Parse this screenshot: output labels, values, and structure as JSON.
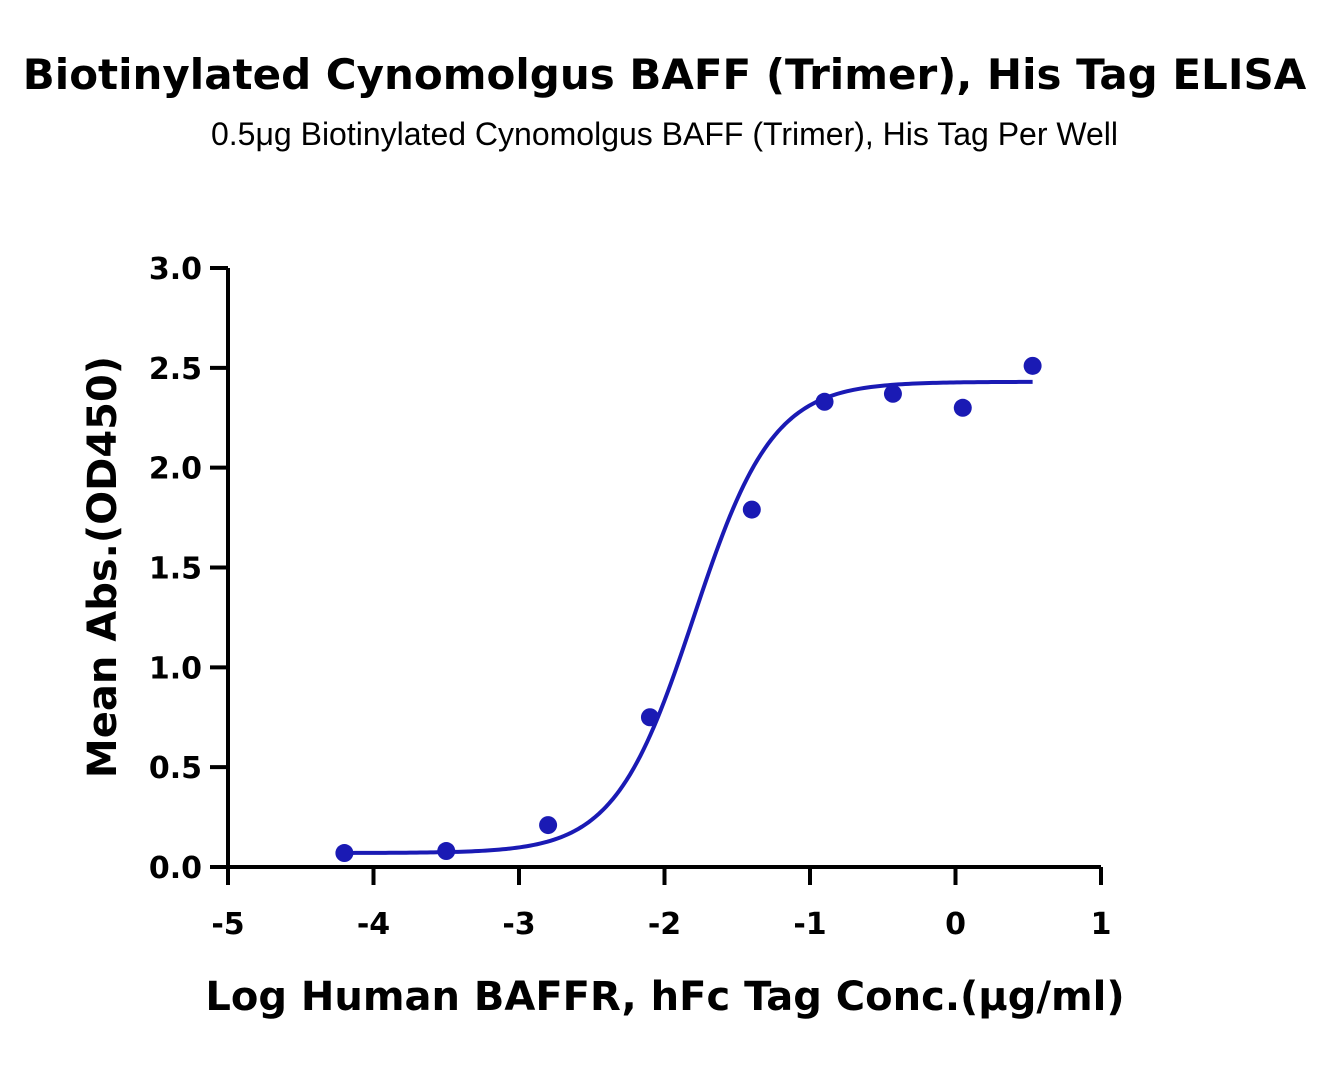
{
  "chart_data": {
    "type": "scatter",
    "title": "Biotinylated Cynomolgus BAFF (Trimer), His Tag  ELISA",
    "subtitle": "0.5μg Biotinylated Cynomolgus BAFF (Trimer), His Tag Per Well",
    "xlabel": "Log  Human BAFFR, hFc Tag Conc.(μg/ml)",
    "ylabel": "Mean Abs.(OD450)",
    "xlim": [
      -5,
      1
    ],
    "ylim": [
      0,
      3.0
    ],
    "x_ticks": [
      "-5",
      "-4",
      "-3",
      "-2",
      "-1",
      "0",
      "1"
    ],
    "y_ticks": [
      "0.0",
      "0.5",
      "1.0",
      "1.5",
      "2.0",
      "2.5",
      "3.0"
    ],
    "grid": false,
    "color": "#1a1ab4",
    "series": [
      {
        "points": [
          {
            "x": -4.2,
            "y": 0.07
          },
          {
            "x": -3.5,
            "y": 0.08
          },
          {
            "x": -2.8,
            "y": 0.21
          },
          {
            "x": -2.1,
            "y": 0.75
          },
          {
            "x": -1.4,
            "y": 1.79
          },
          {
            "x": -0.9,
            "y": 2.33
          },
          {
            "x": -0.43,
            "y": 2.37
          },
          {
            "x": 0.05,
            "y": 2.3
          },
          {
            "x": 0.53,
            "y": 2.51
          }
        ],
        "fit": {
          "bottom": 0.07,
          "top": 2.43,
          "logEC50": -1.8,
          "hillslope": 1.6,
          "x_range": [
            -4.2,
            0.53
          ]
        }
      }
    ]
  }
}
